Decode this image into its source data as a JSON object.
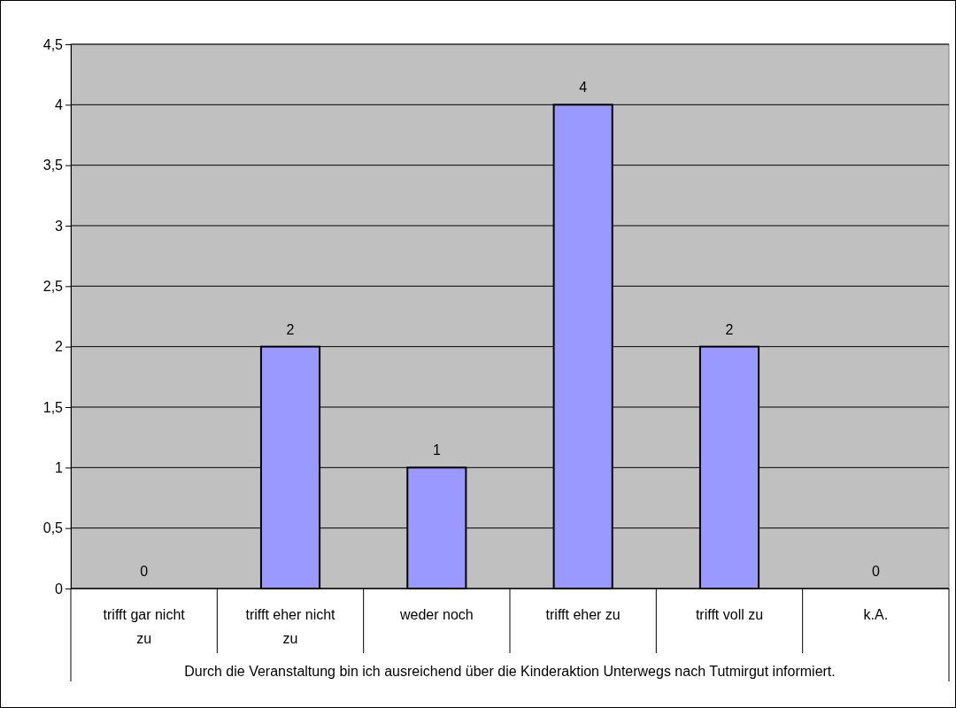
{
  "chart_data": {
    "type": "bar",
    "categories": [
      "trifft gar nicht zu",
      "trifft eher nicht zu",
      "weder noch",
      "trifft eher zu",
      "trifft voll zu",
      "k.A."
    ],
    "values": [
      0,
      2,
      1,
      4,
      2,
      0
    ],
    "color": "#9999ff",
    "xlabel": "Durch die Veranstaltung bin ich ausreichend über die Kinderaktion Unterwegs nach Tutmirgut informiert.",
    "ylim": [
      0,
      4.5
    ],
    "yticks": [
      0,
      {
        "value": 0.5,
        "label": "0,5"
      },
      1,
      {
        "value": 1.5,
        "label": "1,5"
      },
      2,
      {
        "value": 2.5,
        "label": "2,5"
      },
      3,
      {
        "value": 3.5,
        "label": "3,5"
      },
      4,
      {
        "value": 4.5,
        "label": "4,5"
      }
    ],
    "grid": "y",
    "data_labels": true
  }
}
